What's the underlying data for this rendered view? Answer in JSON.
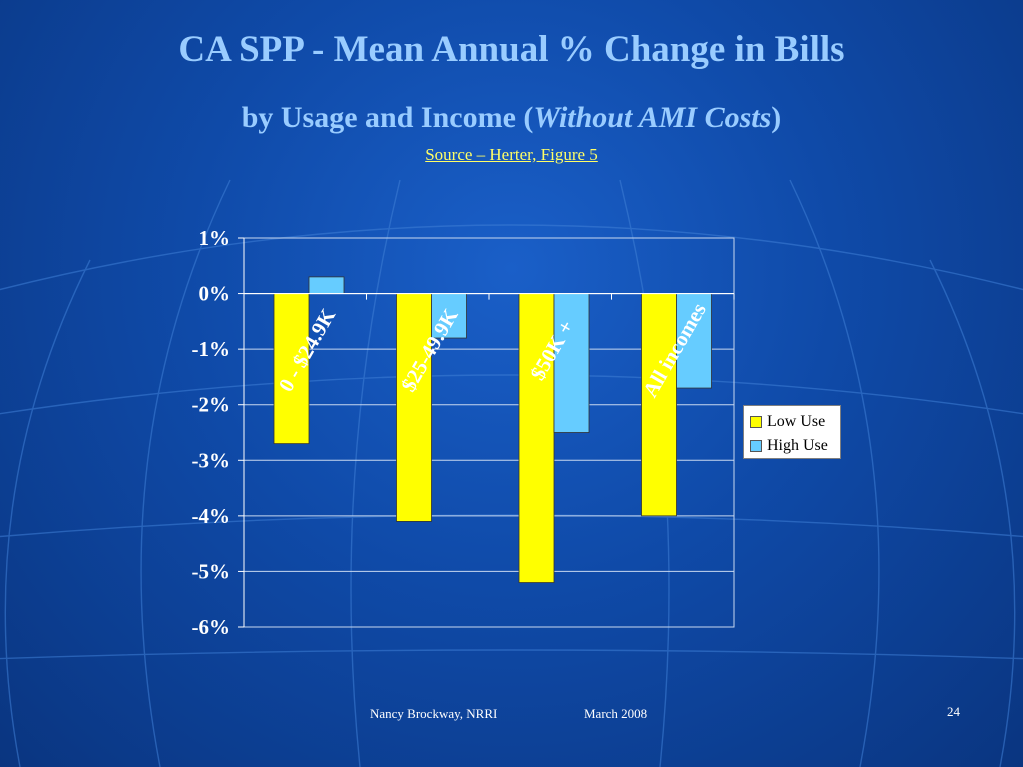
{
  "slide": {
    "title": "CA SPP - Mean Annual % Change in Bills",
    "subtitle_prefix": "by Usage and Income (",
    "subtitle_italic": "Without AMI Costs",
    "subtitle_suffix": ")",
    "source": "Source – Herter, Figure 5",
    "footer_author": "Nancy Brockway, NRRI",
    "footer_date": "March 2008",
    "page_number": "24"
  },
  "colors": {
    "title": "#99ccff",
    "low_use": "#ffff00",
    "high_use": "#66ccff"
  },
  "chart_data": {
    "type": "bar",
    "categories": [
      "0 - $24.9K",
      "$25-49.9K",
      "$50K +",
      "All incomes"
    ],
    "series": [
      {
        "name": "Low Use",
        "values": [
          -2.7,
          -4.1,
          -5.2,
          -4.0
        ],
        "color": "#ffff00"
      },
      {
        "name": "High Use",
        "values": [
          0.3,
          -0.8,
          -2.5,
          -1.7
        ],
        "color": "#66ccff"
      }
    ],
    "yticks": [
      "1%",
      "0%",
      "-1%",
      "-2%",
      "-3%",
      "-4%",
      "-5%",
      "-6%"
    ],
    "ylim": [
      -6,
      1
    ],
    "grid": true,
    "legend": "right"
  }
}
